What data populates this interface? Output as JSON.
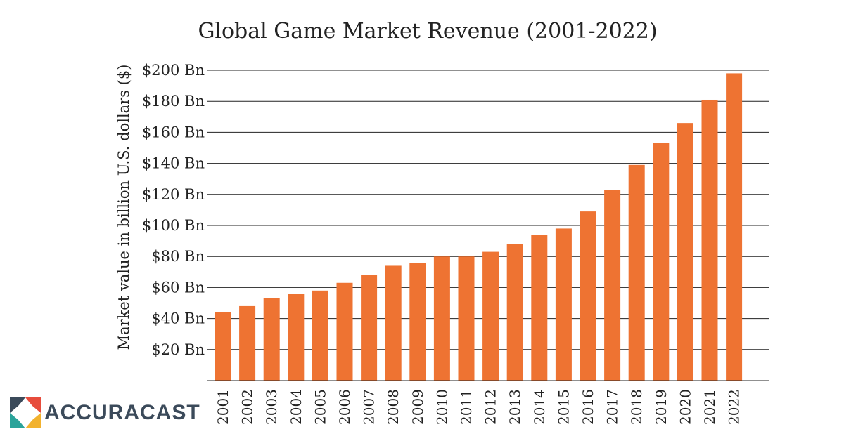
{
  "chart_data": {
    "type": "bar",
    "title": "Global Game Market Revenue (2001-2022)",
    "xlabel": "",
    "ylabel": "Market value in billion U.S. dollars ($)",
    "categories": [
      "2001",
      "2002",
      "2003",
      "2004",
      "2005",
      "2006",
      "2007",
      "2008",
      "2009",
      "2010",
      "2011",
      "2012",
      "2013",
      "2014",
      "2015",
      "2016",
      "2017",
      "2018",
      "2019",
      "2020",
      "2021",
      "2022"
    ],
    "values": [
      44,
      48,
      53,
      56,
      58,
      63,
      68,
      74,
      76,
      80,
      80,
      83,
      88,
      94,
      98,
      109,
      123,
      139,
      153,
      166,
      181,
      198
    ],
    "ylim": [
      0,
      200
    ],
    "ytick_values": [
      20,
      40,
      60,
      80,
      100,
      120,
      140,
      160,
      180,
      200
    ],
    "ytick_labels": [
      "$20 Bn",
      "$40 Bn",
      "$60 Bn",
      "$80 Bn",
      "$100 Bn",
      "$120 Bn",
      "$140 Bn",
      "$160 Bn",
      "$180 Bn",
      "$200 Bn"
    ],
    "grid": true,
    "bar_color": "#ee7332",
    "grid_color": "#222222"
  },
  "logo": {
    "text": "ACCURACAST",
    "text_color": "#3b4a5a",
    "icon_colors": [
      "#3b4a5a",
      "#e74c3c",
      "#2aa39a",
      "#f2b22e"
    ]
  }
}
